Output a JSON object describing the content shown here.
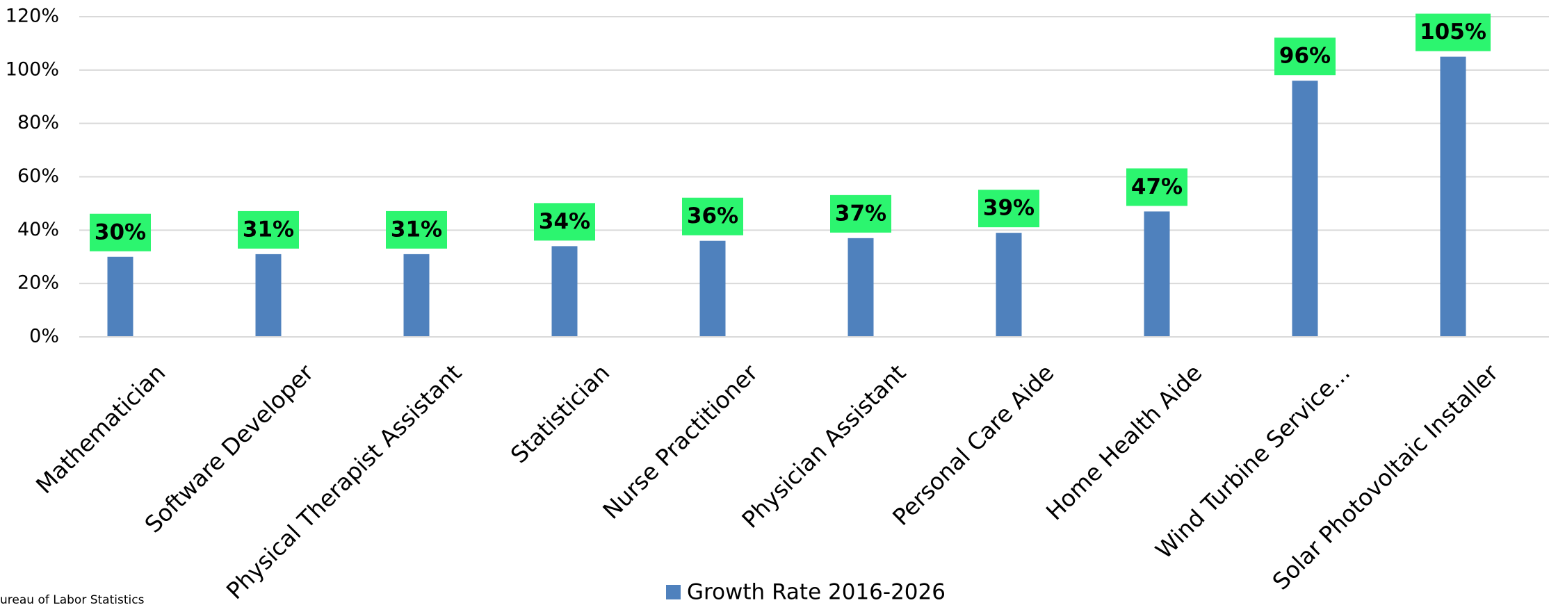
{
  "chart_data": {
    "type": "bar",
    "categories": [
      "Mathematician",
      "Software Developer",
      "Physical Therapist Assistant",
      "Statistician",
      "Nurse Practitioner",
      "Physician Assistant",
      "Personal Care Aide",
      "Home Health Aide",
      "Wind Turbine Service...",
      "Solar Photovoltaic Installer"
    ],
    "series": [
      {
        "name": "Growth Rate 2016-2026",
        "color": "#4f81bd",
        "values": [
          30,
          31,
          31,
          34,
          36,
          37,
          39,
          47,
          96,
          105
        ],
        "value_labels": [
          "30%",
          "31%",
          "31%",
          "34%",
          "36%",
          "37%",
          "39%",
          "47%",
          "96%",
          "105%"
        ]
      }
    ],
    "ylim": [
      0,
      120
    ],
    "yticks": [
      {
        "value": 0,
        "label": "0%"
      },
      {
        "value": 20,
        "label": "20%"
      },
      {
        "value": 40,
        "label": "40%"
      },
      {
        "value": 60,
        "label": "60%"
      },
      {
        "value": 80,
        "label": "80%"
      },
      {
        "value": 100,
        "label": "100%"
      },
      {
        "value": 120,
        "label": "120%"
      }
    ],
    "grid": true,
    "label_color": "#2cf56f",
    "source": "ureau of Labor Statistics"
  }
}
